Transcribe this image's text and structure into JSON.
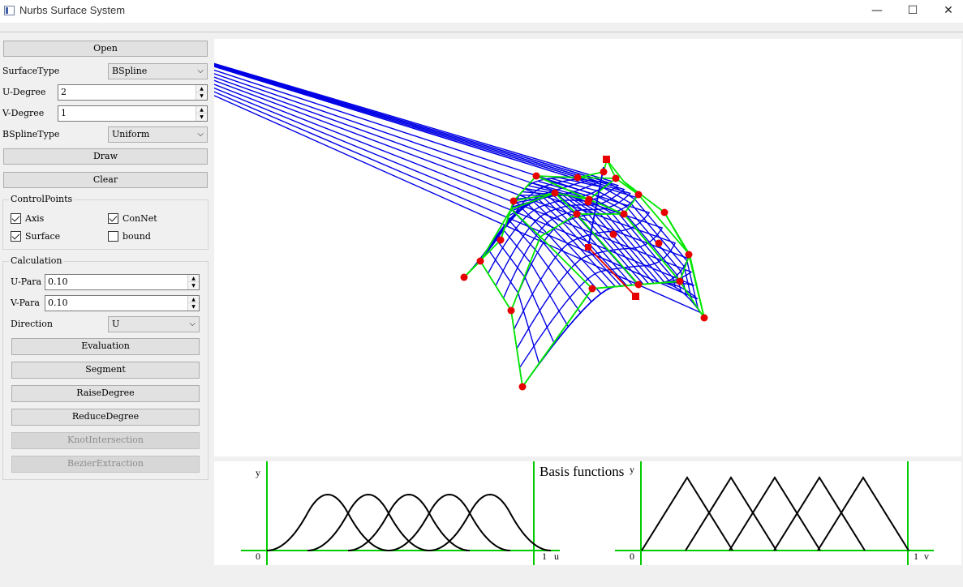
{
  "window": {
    "title": "Nurbs Surface System",
    "minimize_glyph": "—",
    "maximize_glyph": "☐",
    "close_glyph": "✕"
  },
  "controls": {
    "open_label": "Open",
    "surface_type_label": "SurfaceType",
    "surface_type_value": "BSpline",
    "u_degree_label": "U-Degree",
    "u_degree_value": "2",
    "v_degree_label": "V-Degree",
    "v_degree_value": "1",
    "bspline_type_label": "BSplineType",
    "bspline_type_value": "Uniform",
    "draw_label": "Draw",
    "clear_label": "Clear"
  },
  "control_points": {
    "group_title": "ControlPoints",
    "axis": {
      "label": "Axis",
      "checked": true
    },
    "connet": {
      "label": "ConNet",
      "checked": true
    },
    "surface": {
      "label": "Surface",
      "checked": true
    },
    "bound": {
      "label": "bound",
      "checked": false
    }
  },
  "calculation": {
    "group_title": "Calculation",
    "u_para_label": "U-Para",
    "u_para_value": "0.10",
    "v_para_label": "V-Para",
    "v_para_value": "0.10",
    "direction_label": "Direction",
    "direction_value": "U",
    "evaluation_label": "Evaluation",
    "segment_label": "Segment",
    "raise_degree_label": "RaiseDegree",
    "reduce_degree_label": "ReduceDegree",
    "knot_intersection_label": "KnotIntersection",
    "bezier_extraction_label": "BezierExtraction"
  },
  "basis_panel": {
    "title": "Basis functions",
    "left": {
      "y_label": "y",
      "origin_label": "0",
      "end_label": "1",
      "axis_label": "u"
    },
    "right": {
      "y_label": "y",
      "origin_label": "0",
      "end_label": "1",
      "axis_label": "v"
    }
  },
  "colors": {
    "surface_mesh": "#0000e6",
    "control_net": "#00e600",
    "control_point": "#e60000",
    "basis_axis": "#00cc00",
    "basis_curve": "#000000"
  },
  "icons": {
    "app": "app-window-icon",
    "spin_up": "▲",
    "spin_down": "▼",
    "combo": "chevron-down-icon",
    "combo_glyph": "⌵"
  }
}
